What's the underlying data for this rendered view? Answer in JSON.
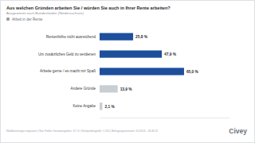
{
  "chart_data": {
    "type": "bar",
    "orientation": "horizontal",
    "title": "Aus welchen Gründen arbeiten Sie / würden Sie auch in Ihrer Rente arbeiten?",
    "subtitle": "Ausgewertet nach Bundesländer (Niedersachsen)",
    "categories": [
      "Rentenhöhe nicht ausreichend",
      "Um zusätzliches Geld zu verdienen",
      "Arbeite gerne / es macht mir Spaß",
      "Andere Gründe",
      "Keine Angabe"
    ],
    "series": [
      {
        "name": "Arbeit in der Rente",
        "values": [
          25.8,
          47.9,
          65.0,
          13.9,
          2.1
        ],
        "value_labels": [
          "25,8 %",
          "47,9 %",
          "65,0 %",
          "13,9 %",
          "2,1 %"
        ],
        "colors": [
          "#1d4f9c",
          "#1d4f9c",
          "#1d4f9c",
          "#c9cdd4",
          "#c9cdd4"
        ]
      }
    ],
    "xlim": [
      0,
      100
    ],
    "grid": false,
    "legend": "top-left",
    "data_labels": true,
    "tick_labels": "y",
    "annotations": [
      "Wahlberechtigte insgesamt | Stat. Fehler Gesamtergebnis: 3,1 % | Stichprobengröße: 1.516 | Befragungszeitraum: 01.08.24 - 26.08.24",
      "Civey"
    ]
  }
}
